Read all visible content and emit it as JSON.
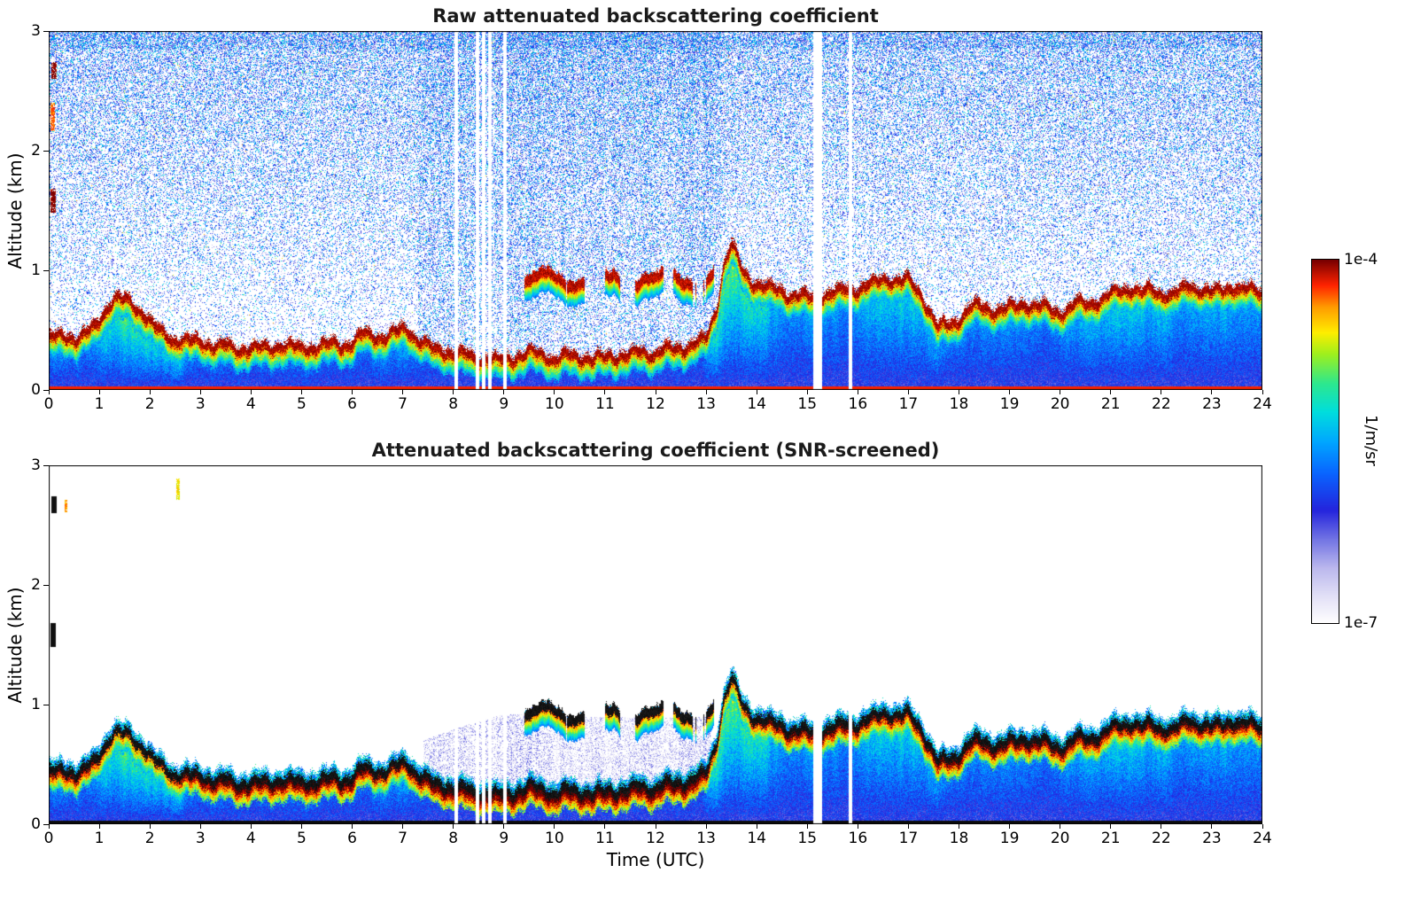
{
  "titles": {
    "top": "Raw attenuated backscattering coefficient",
    "bottom": "Attenuated backscattering coefficient (SNR-screened)"
  },
  "axes": {
    "x_label": "Time (UTC)",
    "y_label": "Altitude (km)",
    "x_ticks": [
      0,
      1,
      2,
      3,
      4,
      5,
      6,
      7,
      8,
      9,
      10,
      11,
      12,
      13,
      14,
      15,
      16,
      17,
      18,
      19,
      20,
      21,
      22,
      23,
      24
    ],
    "y_ticks": [
      0,
      1,
      2,
      3
    ],
    "x_range": [
      0,
      24
    ],
    "y_range": [
      0,
      3
    ]
  },
  "colorbar": {
    "unit_label": "1/m/sr",
    "top_tick": "1e-4",
    "bottom_tick": "1e-7",
    "log10_min": -7,
    "log10_max": -4,
    "stops": [
      [
        0.0,
        "#ffffff"
      ],
      [
        0.07,
        "#e4e2f7"
      ],
      [
        0.15,
        "#bcb9ee"
      ],
      [
        0.23,
        "#7274e4"
      ],
      [
        0.31,
        "#2525dd"
      ],
      [
        0.41,
        "#0a64ff"
      ],
      [
        0.5,
        "#00a8ff"
      ],
      [
        0.58,
        "#00dede"
      ],
      [
        0.66,
        "#2ee88e"
      ],
      [
        0.74,
        "#9ef01e"
      ],
      [
        0.8,
        "#ffee00"
      ],
      [
        0.87,
        "#ff9c00"
      ],
      [
        0.93,
        "#ff2400"
      ],
      [
        1.0,
        "#780000"
      ]
    ]
  },
  "chart_data": {
    "type": "heatmap",
    "panels": [
      {
        "title": "Raw attenuated backscattering coefficient",
        "style": "raw"
      },
      {
        "title": "Attenuated backscattering coefficient (SNR-screened)",
        "style": "screened"
      }
    ],
    "time_range_utc": [
      0,
      24
    ],
    "altitude_range_km": [
      0,
      3
    ],
    "value_scale": {
      "units": "1/m/sr",
      "log10_min": -7,
      "log10_max": -4
    },
    "aerosol_layer_top_km": {
      "times": [
        0.0,
        0.3,
        0.6,
        0.9,
        1.1,
        1.3,
        1.6,
        1.9,
        2.1,
        2.4,
        2.7,
        3.0,
        3.3,
        3.7,
        4.0,
        4.4,
        4.8,
        5.2,
        5.6,
        6.0,
        6.3,
        6.6,
        6.9,
        7.1,
        7.4,
        7.7,
        8.0,
        8.4,
        8.8,
        9.2,
        9.6,
        10.0,
        10.4,
        10.8,
        11.2,
        11.6,
        12.0,
        12.4,
        12.7,
        13.0,
        13.2,
        13.35,
        13.5,
        13.7,
        13.9,
        14.2,
        14.5,
        14.8,
        15.1,
        15.5,
        15.9,
        16.3,
        16.7,
        17.0,
        17.3,
        17.6,
        17.9,
        18.3,
        18.7,
        19.1,
        19.5,
        19.9,
        20.3,
        20.7,
        21.1,
        21.4,
        21.8,
        22.2,
        22.6,
        23.0,
        23.4,
        23.8,
        24.0
      ],
      "heights": [
        0.46,
        0.5,
        0.47,
        0.55,
        0.68,
        0.8,
        0.77,
        0.68,
        0.55,
        0.47,
        0.44,
        0.42,
        0.4,
        0.38,
        0.39,
        0.41,
        0.39,
        0.41,
        0.43,
        0.45,
        0.5,
        0.47,
        0.52,
        0.55,
        0.42,
        0.35,
        0.34,
        0.31,
        0.3,
        0.31,
        0.34,
        0.31,
        0.33,
        0.3,
        0.32,
        0.34,
        0.36,
        0.38,
        0.42,
        0.46,
        0.7,
        1.1,
        1.25,
        1.05,
        0.95,
        0.9,
        0.86,
        0.82,
        0.8,
        0.84,
        0.88,
        0.92,
        0.96,
        0.95,
        0.82,
        0.56,
        0.6,
        0.74,
        0.7,
        0.73,
        0.76,
        0.7,
        0.74,
        0.78,
        0.86,
        0.9,
        0.86,
        0.84,
        0.9,
        0.85,
        0.89,
        0.86,
        0.87
      ]
    },
    "layer_heat_strength": {
      "times": [
        0.0,
        0.9,
        1.2,
        1.8,
        2.4,
        2.8,
        3.3,
        6.2,
        6.5,
        7.1,
        7.5,
        8.0,
        12.9,
        13.15,
        13.6,
        14.1,
        14.5,
        15.8,
        16.1,
        17.0,
        17.5,
        18.0,
        20.8,
        21.3,
        22.0,
        23.0,
        24.0
      ],
      "values": [
        0.55,
        0.6,
        0.9,
        0.95,
        0.85,
        0.55,
        0.4,
        0.4,
        0.65,
        0.6,
        0.32,
        0.28,
        0.28,
        0.8,
        0.9,
        0.7,
        0.48,
        0.48,
        0.62,
        0.62,
        0.48,
        0.45,
        0.5,
        0.6,
        0.55,
        0.55,
        0.55
      ]
    },
    "elevated_layer_km": {
      "segments_utc": [
        [
          9.4,
          10.6
        ],
        [
          10.9,
          11.35
        ],
        [
          11.6,
          12.15
        ],
        [
          12.35,
          13.15
        ]
      ],
      "height_km": 0.93
    },
    "data_gaps_utc": [
      [
        8.02,
        8.09
      ],
      [
        8.44,
        8.52
      ],
      [
        8.57,
        8.63
      ],
      [
        8.68,
        8.76
      ],
      [
        8.98,
        9.05
      ],
      [
        15.12,
        15.3
      ],
      [
        15.82,
        15.9
      ]
    ],
    "noise_streak_window_utc": [
      7.3,
      13.3
    ],
    "screened_haze": {
      "t_start": 7.4,
      "t_end": 13.1,
      "top_km_points": [
        [
          7.4,
          0.7
        ],
        [
          8.2,
          0.82
        ],
        [
          9.0,
          0.92
        ],
        [
          10.5,
          0.9
        ],
        [
          13.1,
          0.9
        ]
      ]
    },
    "high_specks": [
      {
        "t": 0.07,
        "alt_km": 2.28,
        "dt": 0.05,
        "dalt": 0.12,
        "log10": -4.3,
        "panel": "raw"
      },
      {
        "t": 0.08,
        "alt_km": 1.58,
        "dt": 0.05,
        "dalt": 0.1,
        "log10": -4.0,
        "panel": "both"
      },
      {
        "t": 0.1,
        "alt_km": 2.67,
        "dt": 0.05,
        "dalt": 0.07,
        "log10": -4.0,
        "panel": "both"
      },
      {
        "t": 0.33,
        "alt_km": 2.66,
        "dt": 0.03,
        "dalt": 0.05,
        "log10": -4.4,
        "panel": "screened"
      },
      {
        "t": 2.55,
        "alt_km": 2.8,
        "dt": 0.03,
        "dalt": 0.09,
        "log10": -4.6,
        "panel": "screened"
      }
    ],
    "surface_echo": {
      "alt_km": 0.03,
      "log10": -4.2
    }
  }
}
